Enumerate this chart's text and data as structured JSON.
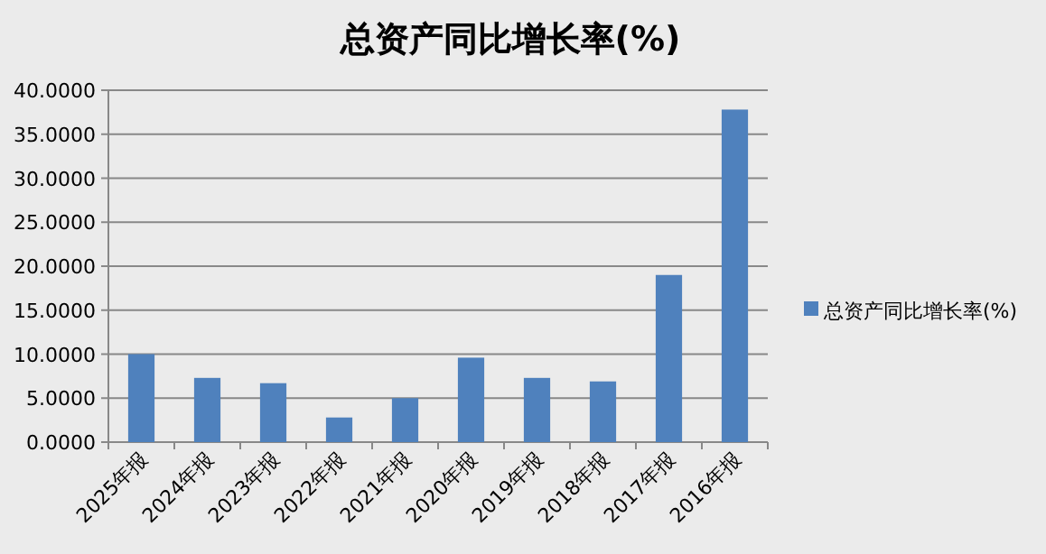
{
  "chart_data": {
    "type": "bar",
    "title": "总资产同比增长率(%)",
    "categories": [
      "2025年报",
      "2024年报",
      "2023年报",
      "2022年报",
      "2021年报",
      "2020年报",
      "2019年报",
      "2018年报",
      "2017年报",
      "2016年报"
    ],
    "series": [
      {
        "name": "总资产同比增长率(%)",
        "color": "#4f81bd",
        "values": [
          10.0,
          7.3,
          6.7,
          2.8,
          5.0,
          9.6,
          7.3,
          6.9,
          19.0,
          37.8
        ]
      }
    ],
    "ylim": [
      0,
      40
    ],
    "yticks": [
      {
        "value": 0,
        "label": "0.0000"
      },
      {
        "value": 5,
        "label": "5.0000"
      },
      {
        "value": 10,
        "label": "10.0000"
      },
      {
        "value": 15,
        "label": "15.0000"
      },
      {
        "value": 20,
        "label": "20.0000"
      },
      {
        "value": 25,
        "label": "25.0000"
      },
      {
        "value": 30,
        "label": "30.0000"
      },
      {
        "value": 35,
        "label": "35.0000"
      },
      {
        "value": 40,
        "label": "40.0000"
      }
    ],
    "grid": "y",
    "legend": "right"
  }
}
